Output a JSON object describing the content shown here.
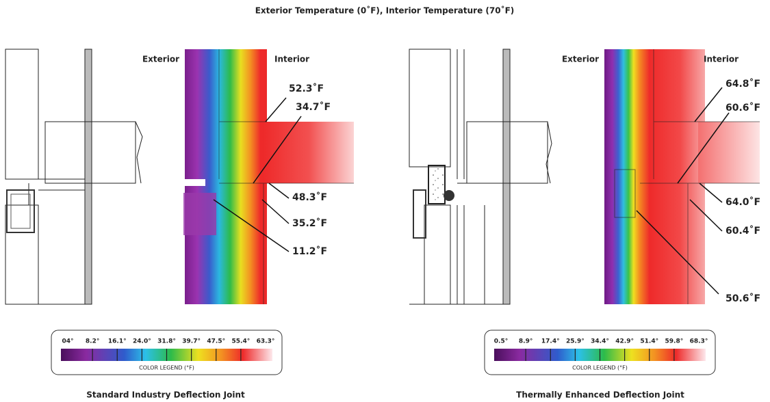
{
  "title": "Exterior Temperature (0˚F), Interior Temperature (70˚F)",
  "panels": [
    {
      "exterior_label": "Exterior",
      "interior_label": "Interior",
      "callouts": [
        "52.3˚F",
        "34.7˚F",
        "48.3˚F",
        "35.2˚F",
        "11.2˚F"
      ],
      "legend": {
        "ticks": [
          "04°",
          "8.2°",
          "16.1°",
          "24.0°",
          "31.8°",
          "39.7°",
          "47.5°",
          "55.4°",
          "63.3°"
        ],
        "caption": "COLOR LEGEND (°F)"
      },
      "caption": "Standard Industry Deflection Joint"
    },
    {
      "exterior_label": "Exterior",
      "interior_label": "Interior",
      "callouts": [
        "64.8˚F",
        "60.6˚F",
        "64.0˚F",
        "60.4˚F",
        "50.6˚F"
      ],
      "legend": {
        "ticks": [
          "0.5°",
          "8.9°",
          "17.4°",
          "25.9°",
          "34.4°",
          "42.9°",
          "51.4°",
          "59.8°",
          "68.3°"
        ],
        "caption": "COLOR LEGEND (°F)"
      },
      "caption": "Thermally Enhanced Deflection Joint"
    }
  ]
}
